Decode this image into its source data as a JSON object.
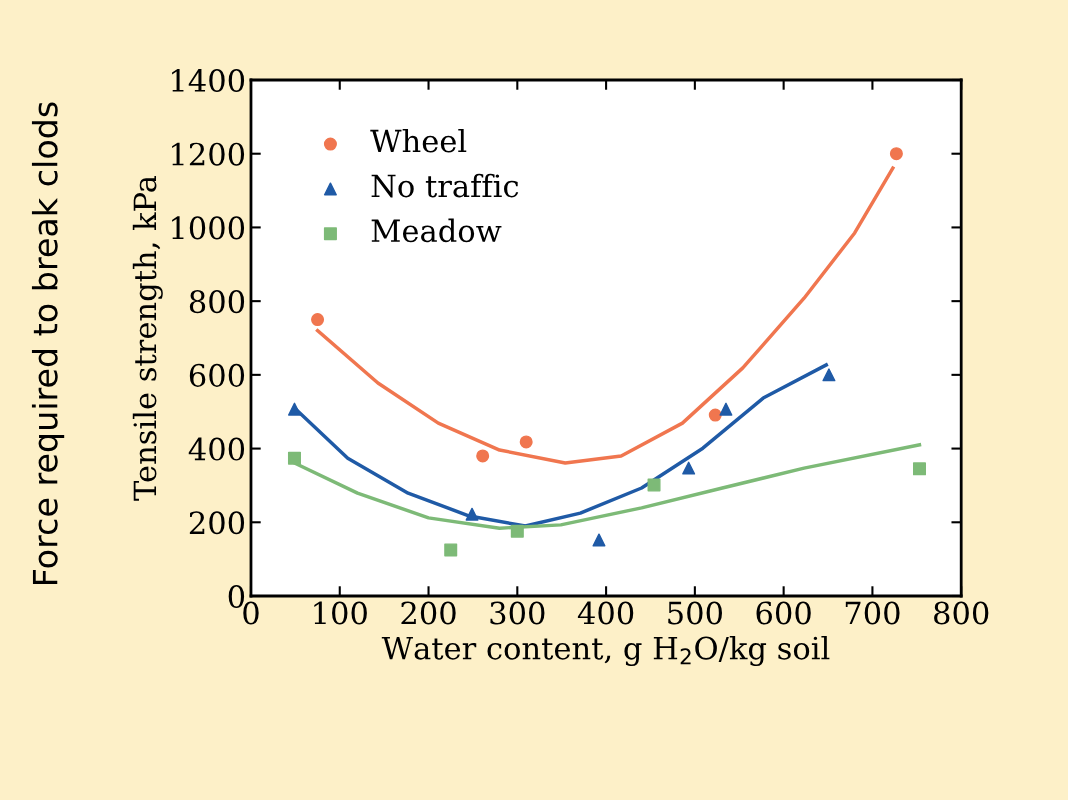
{
  "chart_data": {
    "type": "scatter",
    "xlabel": "Water content, g H$_{2}$O/kg soil",
    "ylabel": "Tensile strength, kPa",
    "annotations": [
      "Force required to break clods"
    ],
    "xlim": [
      0,
      800
    ],
    "xticks": [
      0,
      100,
      200,
      300,
      400,
      500,
      600,
      700,
      800
    ],
    "ylim": [
      0,
      1400
    ],
    "yticks": [
      0,
      200,
      400,
      600,
      800,
      1000,
      1200,
      1400
    ],
    "grid": false,
    "legend": "top left",
    "series": [
      {
        "name": "Wheel",
        "color": "#f0764f",
        "marker": "circle",
        "x": [
          75,
          261,
          310,
          523,
          727
        ],
        "values": [
          750,
          380,
          418,
          491,
          1200
        ]
      },
      {
        "name": "No traffic",
        "color": "#1f5aa6",
        "marker": "triangle",
        "x": [
          49,
          249,
          392,
          493,
          535,
          651
        ],
        "values": [
          507,
          222,
          152,
          347,
          507,
          600
        ]
      },
      {
        "name": "Meadow",
        "color": "#7dba77",
        "marker": "square",
        "x": [
          49,
          225,
          300,
          454,
          753
        ],
        "values": [
          374,
          125,
          176,
          301,
          345
        ]
      },
      {
        "type": "line",
        "color": "#f0764f",
        "x": [
          75,
          143,
          211,
          280,
          354,
          417,
          486,
          554,
          623,
          680,
          723
        ],
        "values": [
          720,
          578,
          469,
          396,
          361,
          380,
          469,
          619,
          808,
          985,
          1161
        ]
      },
      {
        "type": "line",
        "color": "#1f5aa6",
        "x": [
          49,
          109,
          177,
          246,
          309,
          371,
          440,
          509,
          577,
          648
        ],
        "values": [
          510,
          374,
          279,
          217,
          190,
          225,
          293,
          401,
          537,
          627
        ]
      },
      {
        "type": "line",
        "color": "#7dba77",
        "x": [
          49,
          120,
          200,
          280,
          349,
          440,
          531,
          623,
          753
        ],
        "values": [
          361,
          279,
          212,
          184,
          193,
          239,
          293,
          347,
          410
        ]
      }
    ]
  }
}
